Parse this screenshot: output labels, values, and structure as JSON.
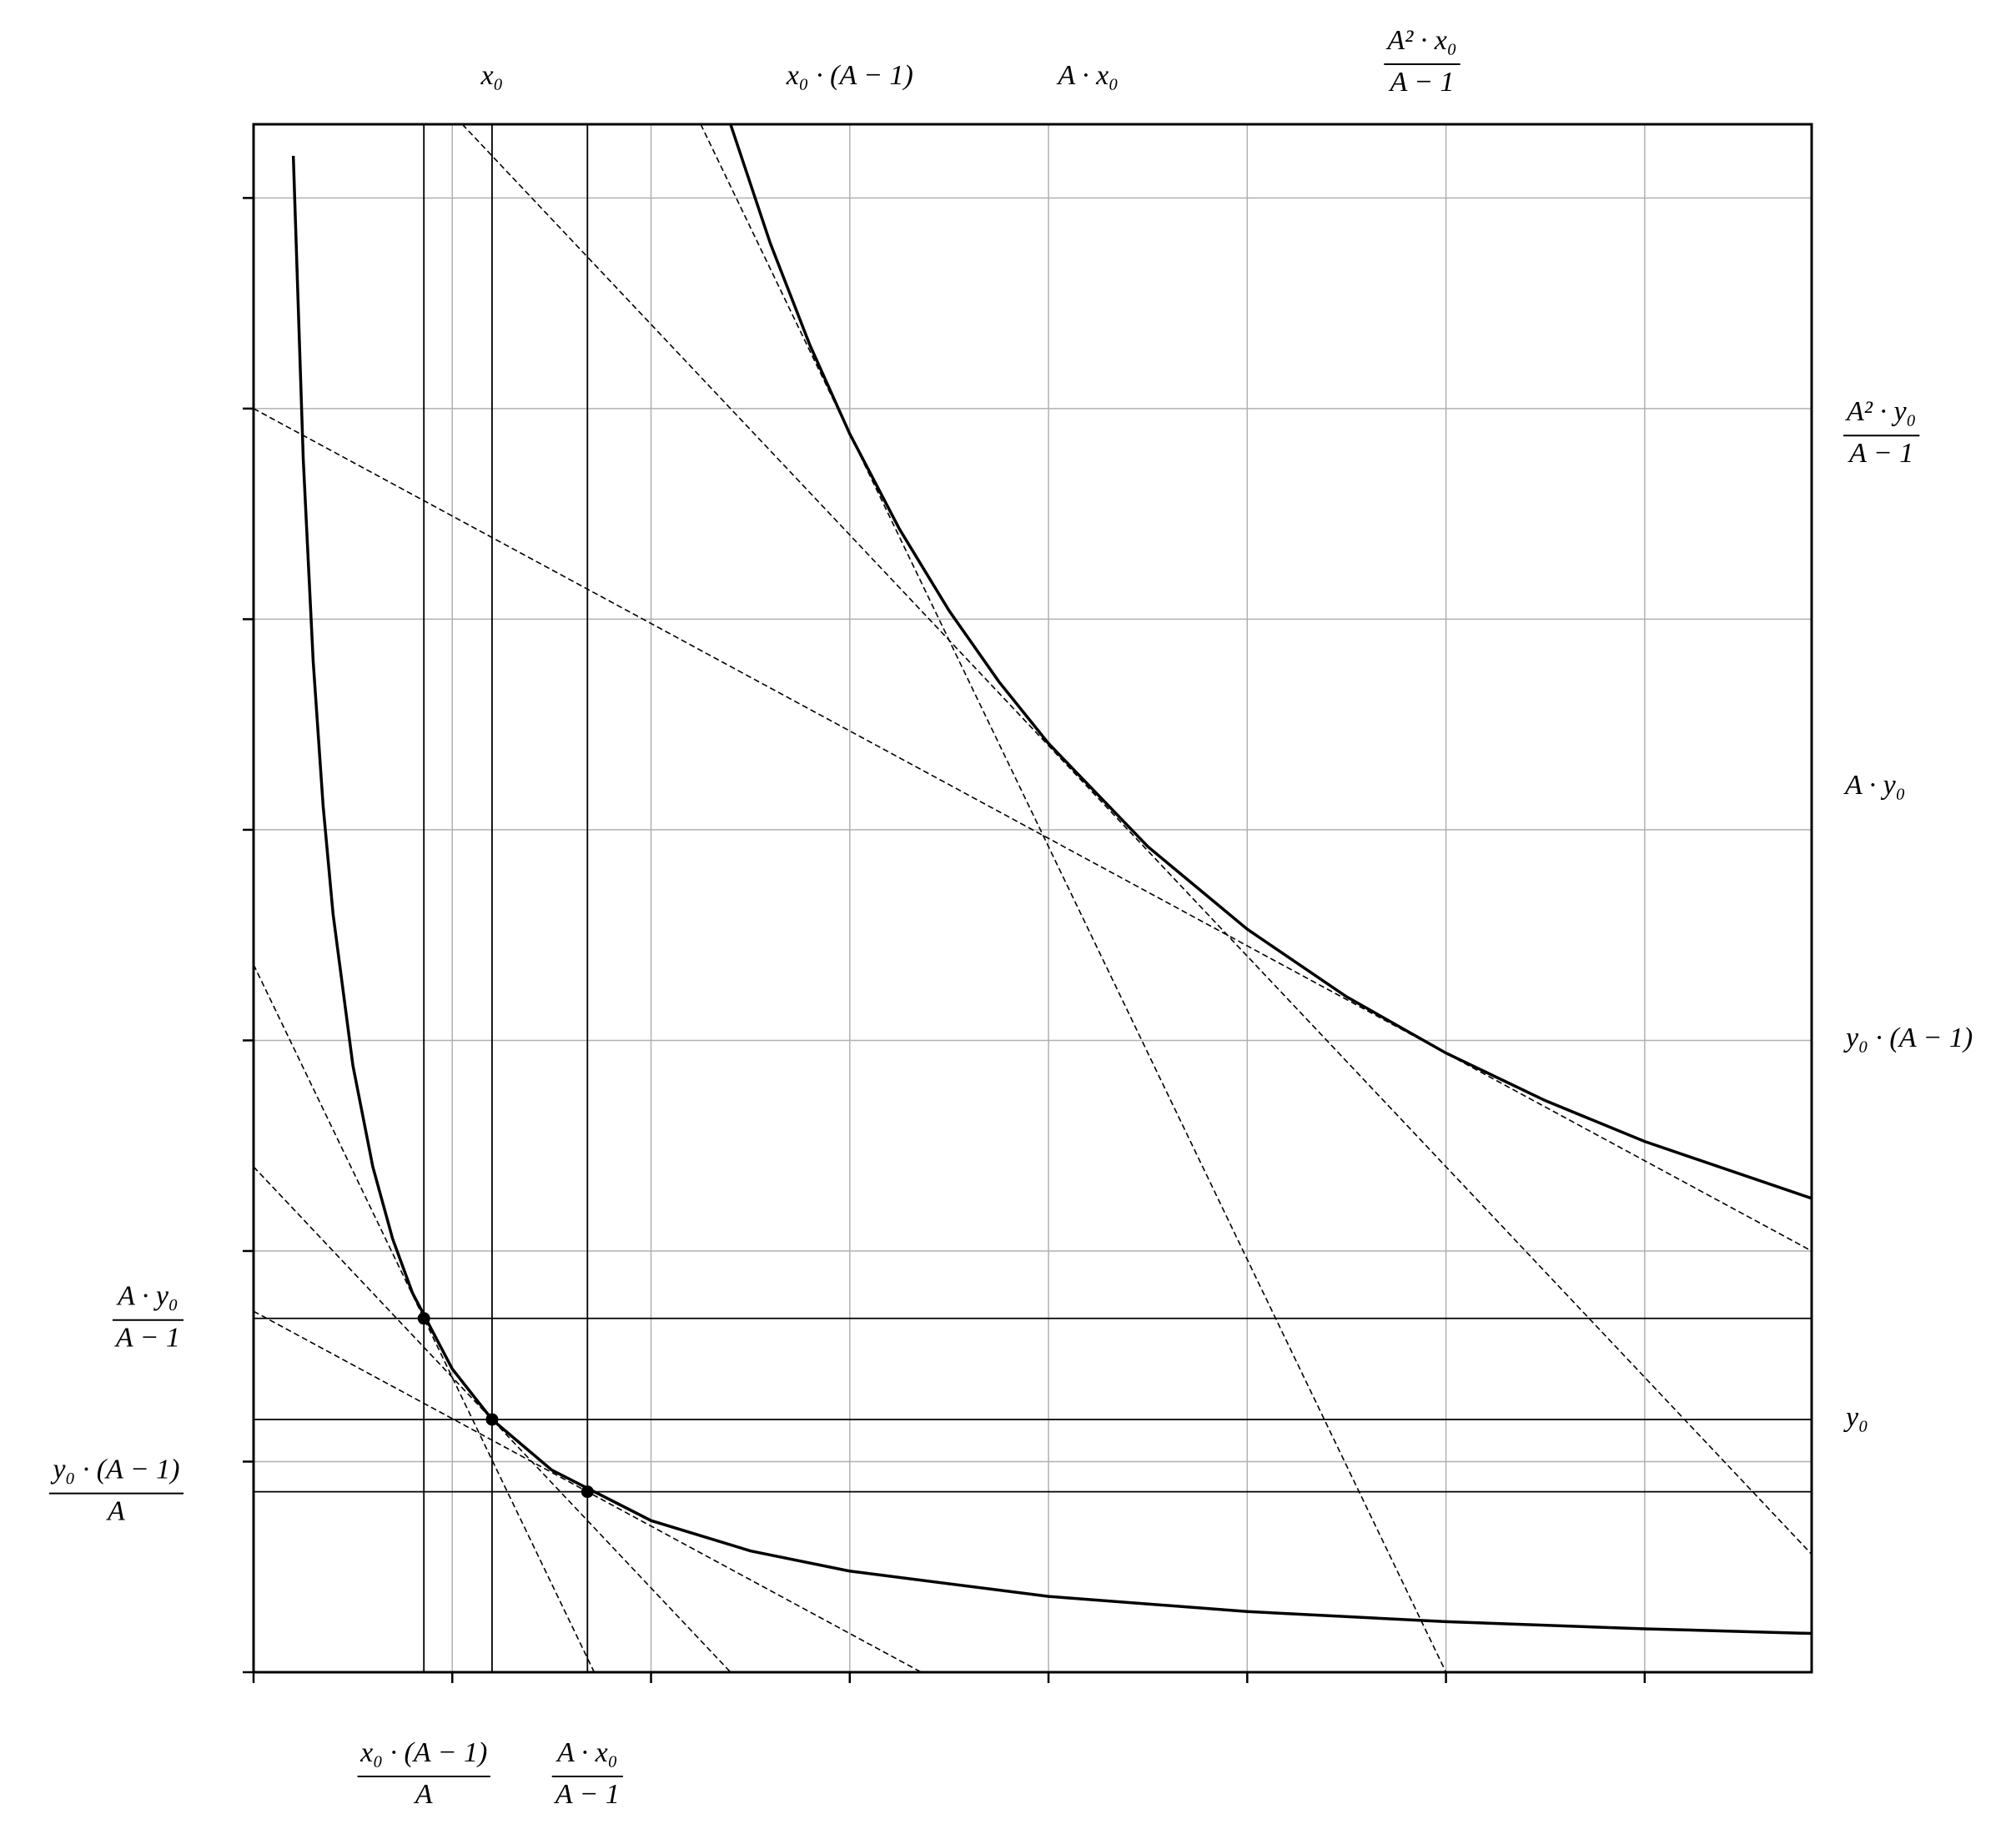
{
  "chart_data": {
    "type": "line",
    "xlim": [
      0,
      7.84
    ],
    "ylim": [
      0,
      7.35
    ],
    "xticks": [
      0,
      1,
      2,
      3,
      4,
      5,
      6,
      7
    ],
    "yticks": [
      0,
      1,
      2,
      3,
      4,
      5,
      6,
      7
    ],
    "grid": true,
    "grid_color": "#b0b0b0",
    "color": "#000000",
    "series": [
      {
        "style": "solid",
        "x": [
          0.2,
          0.25,
          0.3,
          0.35,
          0.4,
          0.5,
          0.6,
          0.7,
          0.8,
          1.0,
          1.2,
          1.5,
          2,
          2.5,
          3,
          4,
          5,
          6,
          7,
          7.84
        ],
        "values": [
          7.2,
          5.76,
          4.8,
          4.114,
          3.6,
          2.88,
          2.4,
          2.057,
          1.8,
          1.44,
          1.2,
          0.96,
          0.72,
          0.576,
          0.48,
          0.36,
          0.288,
          0.24,
          0.206,
          0.184
        ]
      },
      {
        "style": "solid",
        "x": [
          2.4,
          2.6,
          2.8,
          3,
          3.25,
          3.5,
          3.75,
          4,
          4.5,
          5,
          5.5,
          6,
          6.5,
          7,
          7.84
        ],
        "values": [
          7.35,
          6.785,
          6.3,
          5.88,
          5.428,
          5.04,
          4.704,
          4.41,
          3.92,
          3.528,
          3.207,
          2.94,
          2.714,
          2.52,
          2.25
        ]
      },
      {
        "style": "dashed",
        "x": [
          0,
          1.714
        ],
        "values": [
          3.36,
          0
        ]
      },
      {
        "style": "dashed",
        "x": [
          0,
          2.4
        ],
        "values": [
          2.4,
          0
        ]
      },
      {
        "style": "dashed",
        "x": [
          0,
          3.36
        ],
        "values": [
          1.714,
          0
        ]
      },
      {
        "style": "dashed",
        "x": [
          1.05,
          7.84
        ],
        "values": [
          7.35,
          0.56
        ]
      },
      {
        "style": "dashed",
        "x": [
          2.25,
          6
        ],
        "values": [
          7.35,
          0
        ]
      },
      {
        "style": "dashed",
        "x": [
          0,
          7.84
        ],
        "values": [
          6,
          2
        ]
      }
    ],
    "guides": {
      "x": [
        0.857,
        1.2,
        1.68
      ],
      "y": [
        1.68,
        1.2,
        0.857
      ]
    },
    "points": {
      "x": [
        0.857,
        1.2,
        1.68
      ],
      "values": [
        1.68,
        1.2,
        0.857
      ]
    },
    "top_labels": [
      {
        "value": 1.2,
        "label": "x₀"
      },
      {
        "value": 3,
        "label": "x₀ · (A − 1)"
      },
      {
        "value": 4.2,
        "label": "A · x₀"
      },
      {
        "value": 5.88,
        "numerator": "A² · x₀",
        "denominator": "A − 1"
      }
    ],
    "bottom_labels": [
      {
        "value": 0.857,
        "numerator": "x₀ · (A − 1)",
        "denominator": "A"
      },
      {
        "value": 1.68,
        "numerator": "A · x₀",
        "denominator": "A − 1"
      }
    ],
    "right_labels": [
      {
        "value": 5.88,
        "numerator": "A² · y₀",
        "denominator": "A − 1"
      },
      {
        "value": 4.2,
        "label": "A · y₀"
      },
      {
        "value": 3,
        "label": "y₀ · (A − 1)"
      },
      {
        "value": 1.2,
        "label": "y₀"
      }
    ],
    "left_labels": [
      {
        "value": 1.68,
        "numerator": "A · y₀",
        "denominator": "A − 1"
      },
      {
        "value": 0.857,
        "numerator": "y₀ · (A − 1)",
        "denominator": "A"
      }
    ]
  }
}
